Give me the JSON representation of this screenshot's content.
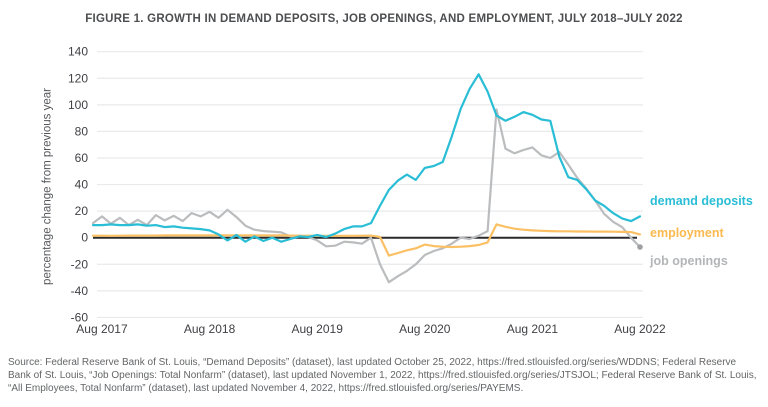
{
  "figure": {
    "title": "FIGURE 1. GROWTH IN DEMAND DEPOSITS, JOB OPENINGS, AND EMPLOYMENT, JULY 2018–JULY 2022",
    "source": "Source: Federal Reserve Bank of St. Louis, “Demand Deposits” (dataset), last updated October 25, 2022, https://fred.stlouisfed.org/series/WDDNS; Federal Reserve Bank of St. Louis, “Job Openings: Total Nonfarm” (dataset), last updated November 1, 2022, https://fred.stlouisfed.org/series/JTSJOL; Federal Reserve Bank of St. Louis, “All Employees, Total Nonfarm” (dataset), last updated November 4, 2022, https://fred.stlouisfed.org/series/PAYEMS."
  },
  "chart_data": {
    "type": "line",
    "title": "FIGURE 1. GROWTH IN DEMAND DEPOSITS, JOB OPENINGS, AND EMPLOYMENT, JULY 2018–JULY 2022",
    "xlabel": "",
    "ylabel": "percentage change from previous year",
    "ylim": [
      -60,
      140
    ],
    "y_ticks": [
      140,
      120,
      100,
      80,
      60,
      40,
      20,
      0,
      -20,
      -40,
      -60
    ],
    "x_start": "Jul 2017",
    "x_end": "Aug 2022",
    "frequency": "monthly",
    "grid": "horizontal",
    "legend_position": "right",
    "zero_line_color": "#2a2a2c",
    "gridline_color": "#e9eaeb",
    "x_ticks": [
      {
        "label": "Aug 2017",
        "month_index": 1
      },
      {
        "label": "Aug 2018",
        "month_index": 13
      },
      {
        "label": "Aug 2019",
        "month_index": 25
      },
      {
        "label": "Aug 2020",
        "month_index": 37
      },
      {
        "label": "Aug 2021",
        "month_index": 49
      },
      {
        "label": "Aug 2022",
        "month_index": 61
      }
    ],
    "series": [
      {
        "name": "job openings",
        "color": "#babcbe",
        "label_color": "#b3b5b7",
        "end_dot": true,
        "end_dot_color": "#9ea0a3",
        "values": [
          11,
          16,
          10.5,
          15,
          9.5,
          13.5,
          9.5,
          17,
          13,
          16.5,
          12.5,
          18.5,
          16,
          19.5,
          15,
          21,
          15.5,
          9,
          6,
          5,
          4.5,
          4,
          1,
          1.5,
          0.5,
          -2,
          -6.5,
          -6,
          -3,
          -3.5,
          -4.5,
          0,
          -20,
          -33.5,
          -29,
          -25,
          -20,
          -13,
          -10,
          -8,
          -4.5,
          0,
          -1,
          1.5,
          5,
          96.5,
          67,
          63.5,
          66,
          68,
          62,
          60,
          64.5,
          55,
          45,
          37,
          28,
          18,
          12,
          8,
          0,
          -7
        ]
      },
      {
        "name": "employment",
        "color": "#fac063",
        "label_color": "#fbb94f",
        "end_dot": false,
        "values": [
          1.5,
          1.5,
          1.4,
          1.5,
          1.6,
          1.6,
          1.6,
          1.6,
          1.7,
          1.7,
          1.7,
          1.7,
          1.7,
          1.7,
          1.8,
          1.8,
          1.8,
          1.8,
          1.8,
          1.7,
          1.7,
          1.7,
          1.6,
          1.5,
          1.5,
          1.4,
          1.4,
          1.4,
          1.4,
          1.4,
          1.5,
          1.6,
          0.5,
          -13.5,
          -11.5,
          -9.5,
          -8,
          -5.2,
          -6.3,
          -6.8,
          -7,
          -6.8,
          -6.3,
          -5.5,
          -3.5,
          10,
          8.2,
          6.8,
          6,
          5.5,
          5.2,
          5,
          4.8,
          4.8,
          4.7,
          4.7,
          4.6,
          4.6,
          4.5,
          4.4,
          4.2,
          2.5
        ]
      },
      {
        "name": "demand deposits",
        "color": "#29bdd6",
        "label_color": "#29bdd6",
        "end_dot": false,
        "values": [
          9.5,
          9.5,
          10,
          9.5,
          9.5,
          10,
          9,
          9.5,
          8,
          8.5,
          7.5,
          7,
          6.5,
          5.5,
          2.5,
          -2,
          2,
          -3,
          1,
          -2.5,
          0,
          -3,
          -1,
          1,
          0.5,
          2,
          0.5,
          3,
          6.5,
          8.5,
          8.5,
          11,
          24,
          36,
          43,
          47.5,
          43.5,
          52.5,
          54,
          57,
          76,
          97,
          112,
          123,
          110,
          92,
          88,
          91,
          94.5,
          92.5,
          89,
          88,
          61,
          45.5,
          43.5,
          36.5,
          28,
          24,
          18.5,
          14.5,
          12.5,
          16
        ]
      }
    ]
  }
}
